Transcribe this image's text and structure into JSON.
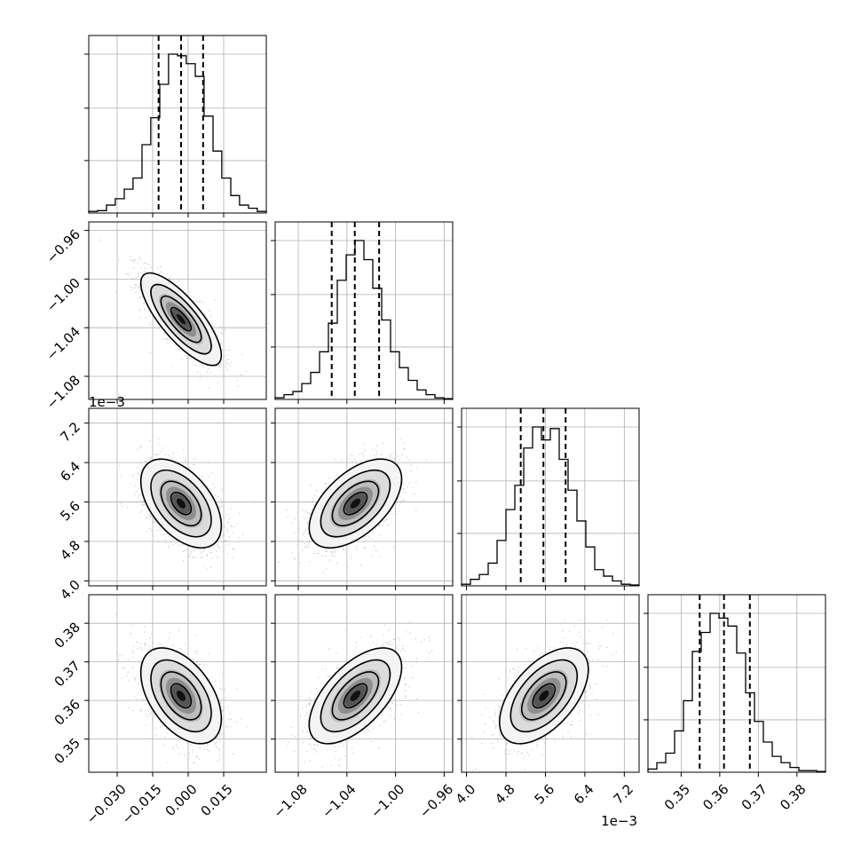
{
  "chart_data": {
    "type": "corner",
    "title": "",
    "parameters": [
      {
        "label": "",
        "range": [
          -0.042,
          0.033
        ],
        "ticks": [
          -0.03,
          -0.015,
          0.0,
          0.015
        ],
        "tick_labels": [
          "−0.030",
          "−0.015",
          "0.000",
          "0.015"
        ],
        "offset_text": "",
        "quantiles": [
          -0.0125,
          -0.003,
          0.0063
        ],
        "mean": -0.003,
        "sd": 0.0085,
        "hist_edges": [
          -0.042,
          -0.0383,
          -0.0345,
          -0.0308,
          -0.027,
          -0.0233,
          -0.0195,
          -0.0158,
          -0.012,
          -0.0083,
          -0.0045,
          -0.0008,
          0.003,
          0.0067,
          0.0105,
          0.0142,
          0.018,
          0.0217,
          0.0255,
          0.0292,
          0.033
        ],
        "hist_counts": [
          0.01,
          0.015,
          0.05,
          0.09,
          0.15,
          0.22,
          0.43,
          0.6,
          0.81,
          1.0,
          0.99,
          0.94,
          0.86,
          0.61,
          0.39,
          0.22,
          0.11,
          0.05,
          0.03,
          0.01
        ]
      },
      {
        "label": "",
        "range": [
          -1.099,
          -0.953
        ],
        "ticks": [
          -1.08,
          -1.04,
          -1.0,
          -0.96
        ],
        "tick_labels": [
          "−1.08",
          "−1.04",
          "−1.00",
          "−0.96"
        ],
        "offset_text": "1e−3",
        "quantiles": [
          -1.0525,
          -1.0335,
          -1.0135
        ],
        "mean": -1.033,
        "sd": 0.019,
        "hist_edges": [
          -1.099,
          -1.0917,
          -1.0844,
          -1.0771,
          -1.0698,
          -1.0625,
          -1.0552,
          -1.0479,
          -1.0406,
          -1.0333,
          -1.026,
          -1.0187,
          -1.0114,
          -1.0041,
          -0.9968,
          -0.9895,
          -0.9822,
          -0.9749,
          -0.9676,
          -0.9603,
          -0.953
        ],
        "hist_counts": [
          0.01,
          0.03,
          0.05,
          0.1,
          0.17,
          0.3,
          0.48,
          0.75,
          0.91,
          1.0,
          0.88,
          0.7,
          0.5,
          0.3,
          0.2,
          0.12,
          0.06,
          0.03,
          0.01,
          0.005
        ]
      },
      {
        "label": "",
        "range": [
          3.9,
          7.5
        ],
        "ticks": [
          4.0,
          4.8,
          5.6,
          6.4,
          7.2
        ],
        "tick_labels": [
          "4.0",
          "4.8",
          "5.6",
          "6.4",
          "7.2"
        ],
        "offset_text": "1e−3",
        "quantiles": [
          5.1,
          5.56,
          6.01
        ],
        "mean": 5.57,
        "sd": 0.45,
        "hist_edges": [
          3.9,
          4.08,
          4.26,
          4.44,
          4.62,
          4.8,
          4.98,
          5.16,
          5.34,
          5.52,
          5.7,
          5.88,
          6.06,
          6.24,
          6.42,
          6.6,
          6.78,
          6.96,
          7.14,
          7.32,
          7.5
        ],
        "hist_counts": [
          0.01,
          0.04,
          0.07,
          0.14,
          0.28,
          0.47,
          0.62,
          0.85,
          0.98,
          0.9,
          0.97,
          0.78,
          0.59,
          0.4,
          0.24,
          0.1,
          0.06,
          0.03,
          0.01,
          0.005
        ]
      },
      {
        "label": "",
        "range": [
          0.3414,
          0.3874
        ],
        "ticks": [
          0.35,
          0.36,
          0.37,
          0.38
        ],
        "tick_labels": [
          "0.35",
          "0.36",
          "0.37",
          "0.38"
        ],
        "offset_text": "",
        "quantiles": [
          0.3548,
          0.3611,
          0.3678
        ],
        "mean": 0.3612,
        "sd": 0.0062,
        "hist_edges": [
          0.3414,
          0.3437,
          0.346,
          0.3483,
          0.3506,
          0.3529,
          0.3552,
          0.3575,
          0.3598,
          0.3621,
          0.3644,
          0.3667,
          0.369,
          0.3713,
          0.3736,
          0.3759,
          0.3782,
          0.3805,
          0.3828,
          0.3851,
          0.3874
        ],
        "hist_counts": [
          0.02,
          0.06,
          0.12,
          0.26,
          0.45,
          0.76,
          0.88,
          1.0,
          0.97,
          0.92,
          0.75,
          0.5,
          0.32,
          0.19,
          0.1,
          0.06,
          0.03,
          0.01,
          0.01,
          0.005
        ]
      }
    ],
    "pairs": [
      {
        "row": 1,
        "col": 0,
        "correlation": -0.78,
        "range_y": [
          -1.099,
          -0.953
        ]
      },
      {
        "row": 2,
        "col": 0,
        "correlation": -0.5,
        "range_y": [
          3.9,
          7.5
        ]
      },
      {
        "row": 2,
        "col": 1,
        "correlation": 0.55,
        "range_y": [
          3.9,
          7.5
        ]
      },
      {
        "row": 3,
        "col": 0,
        "correlation": -0.48,
        "range_y": [
          0.3414,
          0.3874
        ]
      },
      {
        "row": 3,
        "col": 1,
        "correlation": 0.6,
        "range_y": [
          0.3414,
          0.3874
        ]
      },
      {
        "row": 3,
        "col": 2,
        "correlation": 0.55,
        "range_y": [
          0.3414,
          0.3874
        ]
      }
    ],
    "contour_levels": [
      0.118,
      0.393,
      0.675,
      0.865
    ],
    "grid": true
  }
}
